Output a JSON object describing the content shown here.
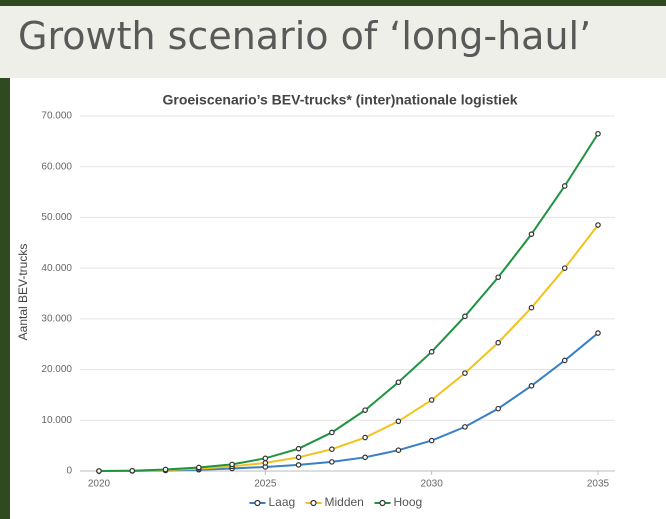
{
  "slide_title": "Growth scenario of ‘long-haul’",
  "chart_data": {
    "type": "line",
    "title": "Groeiscenario’s BEV-trucks* (inter)nationale logistiek",
    "y_label": "Aantal BEV-trucks",
    "x": [
      2020,
      2021,
      2022,
      2023,
      2024,
      2025,
      2026,
      2027,
      2028,
      2029,
      2030,
      2031,
      2032,
      2033,
      2034,
      2035
    ],
    "xlim": [
      2020,
      2035
    ],
    "xticks": [
      2020,
      2025,
      2030,
      2035
    ],
    "ylim": [
      0,
      70000
    ],
    "yticks": [
      0,
      {
        "value": 10000,
        "label": "10.000"
      },
      {
        "value": 20000,
        "label": "20.000"
      },
      {
        "value": 30000,
        "label": "30.000"
      },
      {
        "value": 40000,
        "label": "40.000"
      },
      {
        "value": 50000,
        "label": "50.000"
      },
      {
        "value": 60000,
        "label": "60.000"
      },
      {
        "value": 70000,
        "label": "70.000"
      }
    ],
    "grid": true,
    "legend": "bottom",
    "series": [
      {
        "name": "Laag",
        "color": "#3a7fc4",
        "values": [
          0,
          10,
          100,
          250,
          500,
          800,
          1200,
          1800,
          2700,
          4100,
          6000,
          8700,
          12300,
          16800,
          21800,
          27200
        ]
      },
      {
        "name": "Midden",
        "color": "#f2c21b",
        "values": [
          0,
          30,
          200,
          450,
          900,
          1600,
          2700,
          4300,
          6600,
          9800,
          14000,
          19300,
          25300,
          32200,
          40000,
          48500
        ]
      },
      {
        "name": "Hoog",
        "color": "#1f9340",
        "values": [
          0,
          50,
          300,
          700,
          1300,
          2500,
          4400,
          7600,
          12000,
          17500,
          23500,
          30500,
          38200,
          46700,
          56200,
          66500
        ]
      }
    ]
  }
}
